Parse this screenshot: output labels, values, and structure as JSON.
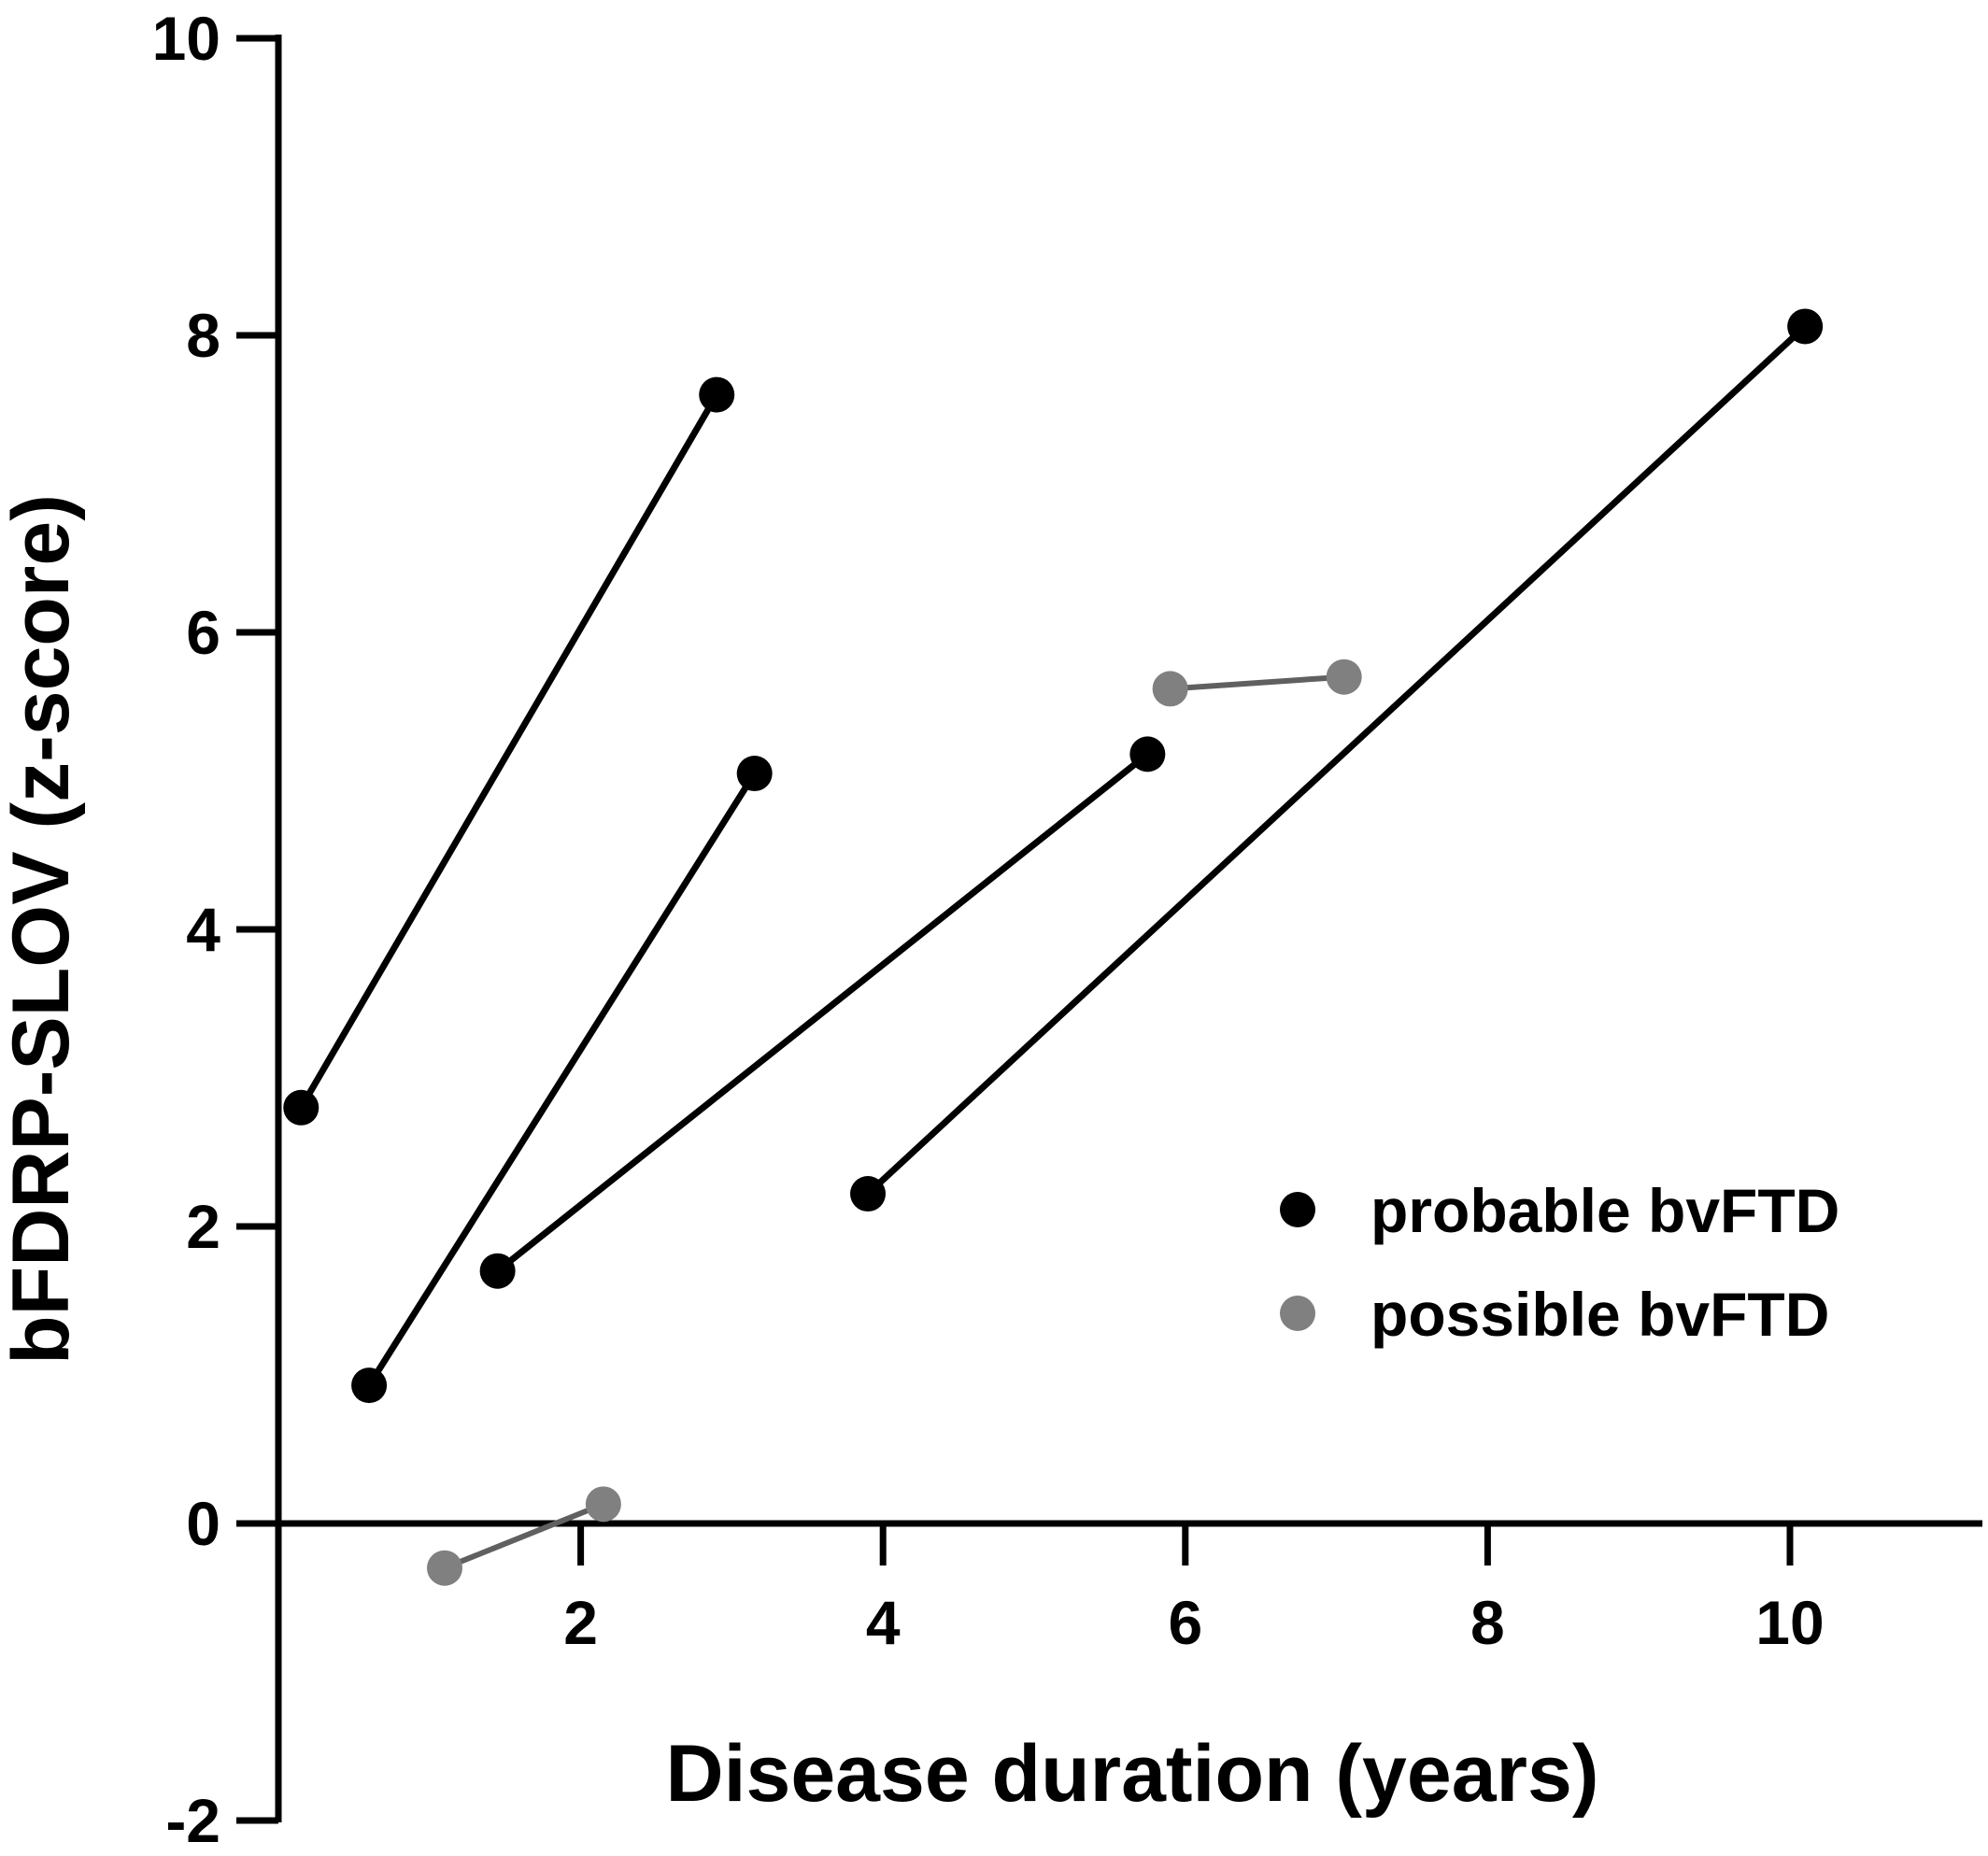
{
  "chart_data": {
    "type": "line",
    "xlabel": "Disease duration (years)",
    "ylabel": "bFDRP-SLOV (z-score)",
    "xlim": [
      0,
      11.5
    ],
    "ylim": [
      -2,
      10
    ],
    "x_ticks": [
      2,
      4,
      6,
      8,
      10
    ],
    "y_ticks": [
      -2,
      0,
      2,
      4,
      6,
      8,
      10
    ],
    "x_tick_labels": [
      "2",
      "4",
      "6",
      "8",
      "10"
    ],
    "y_tick_labels": [
      "-2",
      "0",
      "2",
      "4",
      "6",
      "8",
      "10"
    ],
    "grid": false,
    "legend_position": "right",
    "groups": [
      {
        "name": "probable bvFTD",
        "color": "#000000",
        "line_color": "#000000"
      },
      {
        "name": "possible bvFTD",
        "color": "#808080",
        "line_color": "#606060"
      }
    ],
    "series": [
      {
        "group": 0,
        "points": [
          [
            0.15,
            2.8
          ],
          [
            2.9,
            7.6
          ]
        ]
      },
      {
        "group": 0,
        "points": [
          [
            0.6,
            0.93
          ],
          [
            3.15,
            5.05
          ]
        ]
      },
      {
        "group": 0,
        "points": [
          [
            1.45,
            1.7
          ],
          [
            5.75,
            5.18
          ]
        ]
      },
      {
        "group": 0,
        "points": [
          [
            3.9,
            2.22
          ],
          [
            10.1,
            8.06
          ]
        ]
      },
      {
        "group": 1,
        "points": [
          [
            5.9,
            5.62
          ],
          [
            7.05,
            5.7
          ]
        ]
      },
      {
        "group": 1,
        "points": [
          [
            1.1,
            -0.3
          ],
          [
            2.15,
            0.13
          ]
        ]
      }
    ]
  }
}
